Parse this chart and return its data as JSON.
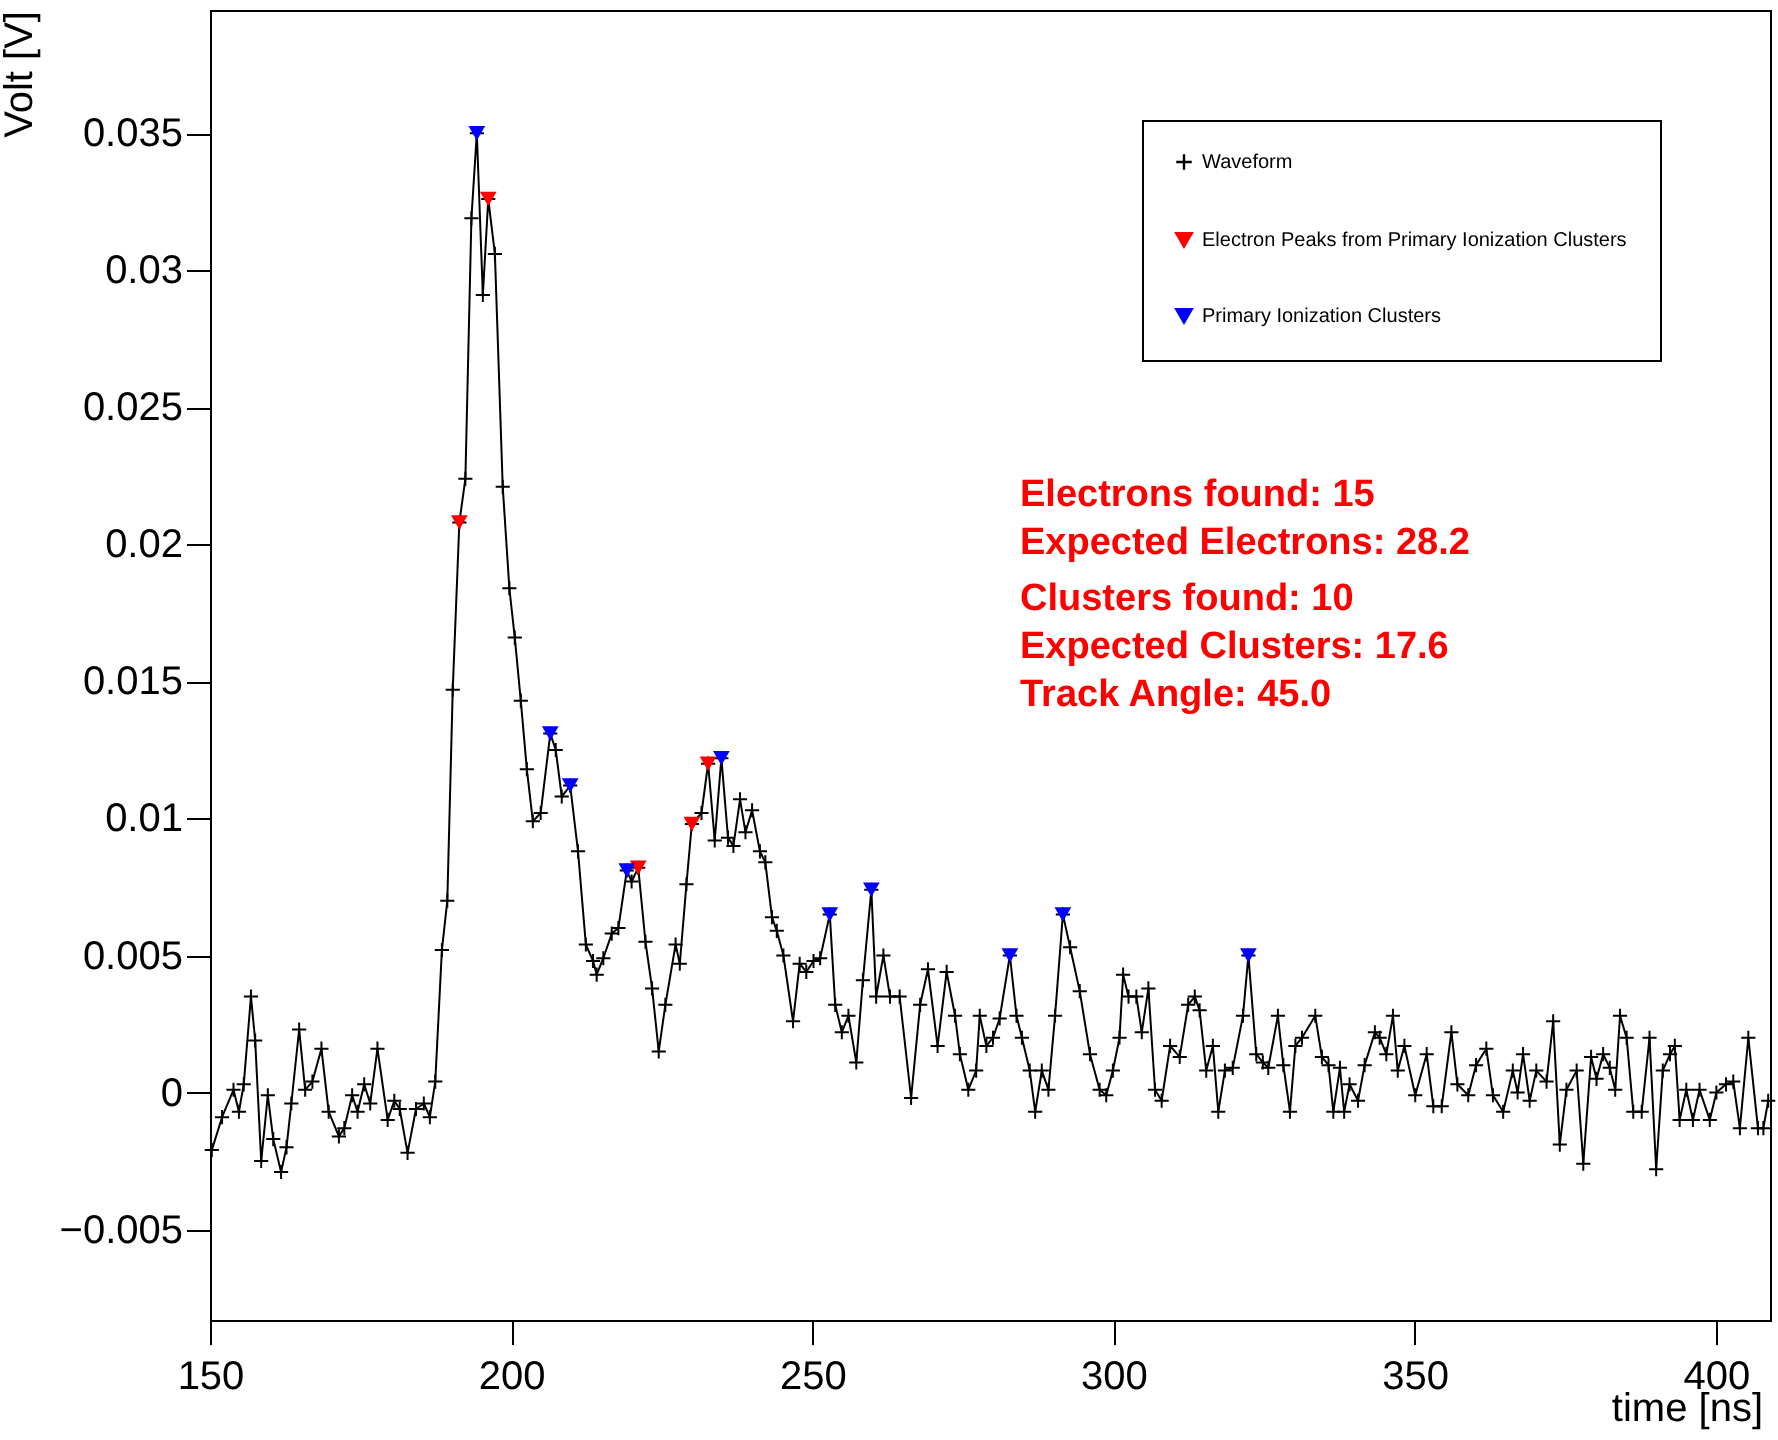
{
  "chart_data": {
    "type": "line",
    "xlabel": "time [ns]",
    "ylabel": "Volt [V]",
    "xlim": [
      150,
      409
    ],
    "ylim": [
      -0.0083,
      0.0395
    ],
    "xticks": [
      150,
      200,
      250,
      300,
      350,
      400
    ],
    "yticks": [
      -0.005,
      0,
      0.005,
      0.01,
      0.015,
      0.02,
      0.025,
      0.03,
      0.035
    ],
    "grid": false,
    "legend": "top right",
    "annotations": [
      "Electrons found: 15",
      "Expected Electrons: 28.2",
      "Clusters found: 10",
      "Expected Clusters: 17.6",
      "Track Angle: 45.0"
    ],
    "series": [
      {
        "name": "Waveform",
        "type": "line",
        "color": "#000000",
        "marker": "cross",
        "x": [
          150.3,
          152,
          153.9,
          154.8,
          155.6,
          156.8,
          157.5,
          158.5,
          159.6,
          160.5,
          161.8,
          162.7,
          163.5,
          164.8,
          165.8,
          167,
          168.5,
          169.7,
          171.4,
          172.3,
          173.6,
          174.5,
          175.6,
          176.6,
          177.8,
          179.5,
          180.6,
          181.5,
          182.8,
          184.2,
          185.5,
          186.5,
          187.4,
          188.5,
          189.4,
          190.3,
          191.4,
          192.4,
          193.4,
          194.3,
          195.3,
          196.2,
          197.3,
          198.6,
          199.7,
          200.6,
          201.6,
          202.6,
          203.6,
          204.9,
          206.5,
          207.4,
          208.4,
          209.8,
          211.1,
          212.4,
          213.6,
          214.2,
          215.3,
          216.7,
          217.8,
          219.2,
          220,
          221.1,
          222.3,
          223.4,
          224.5,
          225.6,
          227.3,
          228,
          229.1,
          230,
          231.6,
          232.7,
          233.8,
          234.9,
          236,
          236.9,
          238,
          238.9,
          240,
          241.3,
          242.2,
          243.3,
          244.1,
          245.2,
          246.8,
          247.9,
          249,
          250.2,
          251.3,
          252.9,
          253.8,
          254.9,
          256,
          257.3,
          258.4,
          259.8,
          260.6,
          261.8,
          262.9,
          264.5,
          266.4,
          267.9,
          269.2,
          270.8,
          272.3,
          273.7,
          274.5,
          275.9,
          277.2,
          277.8,
          278.9,
          280,
          281.1,
          282.8,
          283.9,
          284.8,
          286.1,
          287,
          288.1,
          289.2,
          290.3,
          291.6,
          292.8,
          294.4,
          296.1,
          297.7,
          298.8,
          299.9,
          301,
          301.6,
          302.5,
          303.8,
          304.7,
          305.8,
          306.9,
          308,
          309.4,
          311,
          312.4,
          313.5,
          314.3,
          315.4,
          316.5,
          317.4,
          318.5,
          319.8,
          321.5,
          322.4,
          323.7,
          324.8,
          325.7,
          327.3,
          328.2,
          329.3,
          330.2,
          331.3,
          333.5,
          334.6,
          335.7,
          336.5,
          337.6,
          338.3,
          339.2,
          340.6,
          341.7,
          343.4,
          344.2,
          345.3,
          346.4,
          347.2,
          348.3,
          350.1,
          352,
          353.1,
          354.5,
          356.1,
          357.1,
          358.9,
          360.2,
          361.9,
          363,
          364.7,
          366.3,
          367.1,
          368,
          369.1,
          370.2,
          371.9,
          373,
          374.1,
          375.2,
          376.9,
          378,
          379.3,
          380.2,
          381.3,
          382.4,
          383.3,
          384.1,
          385.2,
          386.3,
          387.7,
          389,
          390.1,
          391.2,
          392.4,
          393.2,
          394,
          395.1,
          396.2,
          397.3,
          399,
          400.1,
          401.7,
          402.9,
          404,
          405.4,
          407,
          407.9,
          408.7
        ],
        "values": [
          -0.0021,
          -0.0009,
          0.0001,
          -0.0007,
          0.0003,
          0.0035,
          0.0019,
          -0.0025,
          -0.0001,
          -0.0017,
          -0.0029,
          -0.002,
          -0.0004,
          0.0023,
          0.0001,
          0.0004,
          0.0016,
          -0.0007,
          -0.0016,
          -0.0013,
          -0.0001,
          -0.0007,
          0.0003,
          -0.0004,
          0.0016,
          -0.001,
          -0.0003,
          -0.0006,
          -0.0022,
          -0.0006,
          -0.0004,
          -0.0009,
          0.0004,
          0.0052,
          0.007,
          0.0147,
          0.0208,
          0.0224,
          0.0319,
          0.035,
          0.0291,
          0.0326,
          0.0306,
          0.0221,
          0.0184,
          0.0166,
          0.0143,
          0.0118,
          0.0099,
          0.0102,
          0.0131,
          0.0125,
          0.0108,
          0.0112,
          0.0088,
          0.0054,
          0.0048,
          0.0043,
          0.0049,
          0.0058,
          0.006,
          0.0081,
          0.0077,
          0.0082,
          0.0055,
          0.0038,
          0.0015,
          0.0032,
          0.0054,
          0.0047,
          0.0076,
          0.0098,
          0.0102,
          0.012,
          0.0092,
          0.0122,
          0.0093,
          0.009,
          0.0107,
          0.0095,
          0.0103,
          0.0088,
          0.0084,
          0.0064,
          0.0059,
          0.005,
          0.0026,
          0.0047,
          0.0044,
          0.0048,
          0.0049,
          0.0065,
          0.0032,
          0.0022,
          0.0028,
          0.0011,
          0.0041,
          0.0074,
          0.0035,
          0.005,
          0.0035,
          0.0035,
          -0.0002,
          0.0032,
          0.0045,
          0.0017,
          0.0044,
          0.0028,
          0.0014,
          0.0001,
          0.0008,
          0.0028,
          0.0017,
          0.002,
          0.0027,
          0.005,
          0.0028,
          0.002,
          0.0008,
          -0.0007,
          0.0008,
          0.0001,
          0.0028,
          0.0065,
          0.0053,
          0.0037,
          0.0014,
          0.0001,
          -0.0001,
          0.0008,
          0.002,
          0.0043,
          0.0035,
          0.0035,
          0.0022,
          0.0038,
          0.0001,
          -0.0003,
          0.0017,
          0.0013,
          0.0032,
          0.0035,
          0.003,
          0.0008,
          0.0017,
          -0.0007,
          0.0008,
          0.0009,
          0.0028,
          0.005,
          0.0014,
          0.0011,
          0.0009,
          0.0028,
          0.001,
          -0.0007,
          0.0017,
          0.002,
          0.0028,
          0.0013,
          0.001,
          -0.0007,
          0.0009,
          -0.0007,
          0.0003,
          -0.0003,
          0.001,
          0.0022,
          0.002,
          0.0014,
          0.0028,
          0.0008,
          0.0017,
          -0.0001,
          0.0014,
          -0.0005,
          -0.0005,
          0.0022,
          0.0003,
          -0.0001,
          0.001,
          0.0016,
          -0.0001,
          -0.0007,
          0.0008,
          0.0,
          0.0014,
          -0.0003,
          0.0008,
          0.0004,
          0.0026,
          -0.0019,
          0.0001,
          0.0008,
          -0.0026,
          0.0013,
          0.0005,
          0.0014,
          0.0009,
          0.0001,
          0.0028,
          0.002,
          -0.0007,
          -0.0007,
          0.002,
          -0.0028,
          0.0008,
          0.0014,
          0.0017,
          -0.001,
          0.0001,
          -0.001,
          0.0001,
          -0.001,
          0.0,
          0.0003,
          0.0004,
          -0.0013,
          0.002,
          -0.0013,
          -0.0013,
          -0.0003
        ]
      },
      {
        "name": "Electron Peaks from Primary Ionization Clusters",
        "type": "scatter",
        "color": "#ff0000",
        "marker": "triangle",
        "x": [
          191.4,
          196.2,
          221.1,
          230,
          232.7
        ],
        "values": [
          0.0208,
          0.0326,
          0.0082,
          0.0098,
          0.012
        ]
      },
      {
        "name": "Primary Ionization Clusters",
        "type": "scatter",
        "color": "#0000ff",
        "marker": "triangle",
        "x": [
          194.3,
          206.5,
          209.8,
          219.2,
          234.9,
          252.9,
          259.8,
          282.8,
          291.6,
          322.4
        ],
        "values": [
          0.035,
          0.0131,
          0.0112,
          0.0081,
          0.0122,
          0.0065,
          0.0074,
          0.005,
          0.0065,
          0.005
        ]
      }
    ]
  }
}
